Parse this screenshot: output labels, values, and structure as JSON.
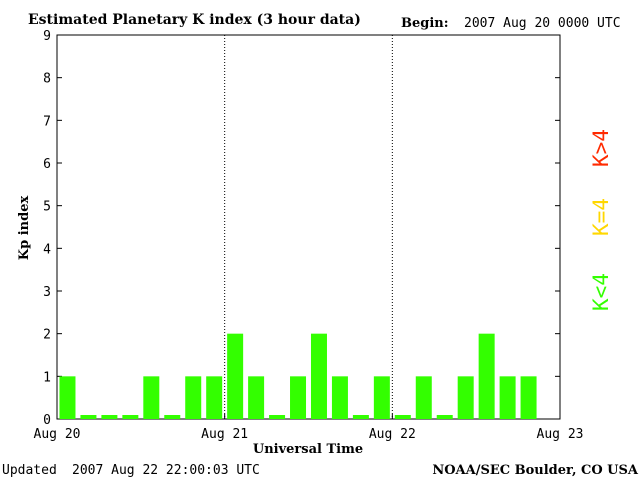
{
  "title": "Estimated Planetary K index (3 hour data)",
  "begin_label": "Begin:",
  "begin_value": "2007 Aug 20 0000 UTC",
  "footer": {
    "updated_label": "Updated",
    "updated_value": "2007 Aug 22 22:00:03 UTC",
    "source": "NOAA/SEC Boulder, CO USA"
  },
  "legend": [
    {
      "text": "K>4",
      "color": "#ff2a00"
    },
    {
      "text": "K=4",
      "color": "#ffd700"
    },
    {
      "text": "K<4",
      "color": "#33ff00"
    }
  ],
  "chart_data": {
    "type": "bar",
    "title": "Estimated Planetary K index (3 hour data)",
    "xlabel": "Universal Time",
    "ylabel": "Kp index",
    "ylim": [
      0,
      9
    ],
    "yticks": [
      0,
      1,
      2,
      3,
      4,
      5,
      6,
      7,
      8,
      9
    ],
    "xticks": [
      "Aug 20",
      "Aug 21",
      "Aug 22",
      "Aug 23"
    ],
    "day_separators": true,
    "slots_per_day": 8,
    "bar_color": "#33ff00",
    "values": [
      1,
      0,
      0,
      0,
      1,
      0,
      1,
      1,
      2,
      1,
      0,
      1,
      2,
      1,
      0,
      1,
      0,
      1,
      0,
      1,
      2,
      1,
      1
    ]
  }
}
